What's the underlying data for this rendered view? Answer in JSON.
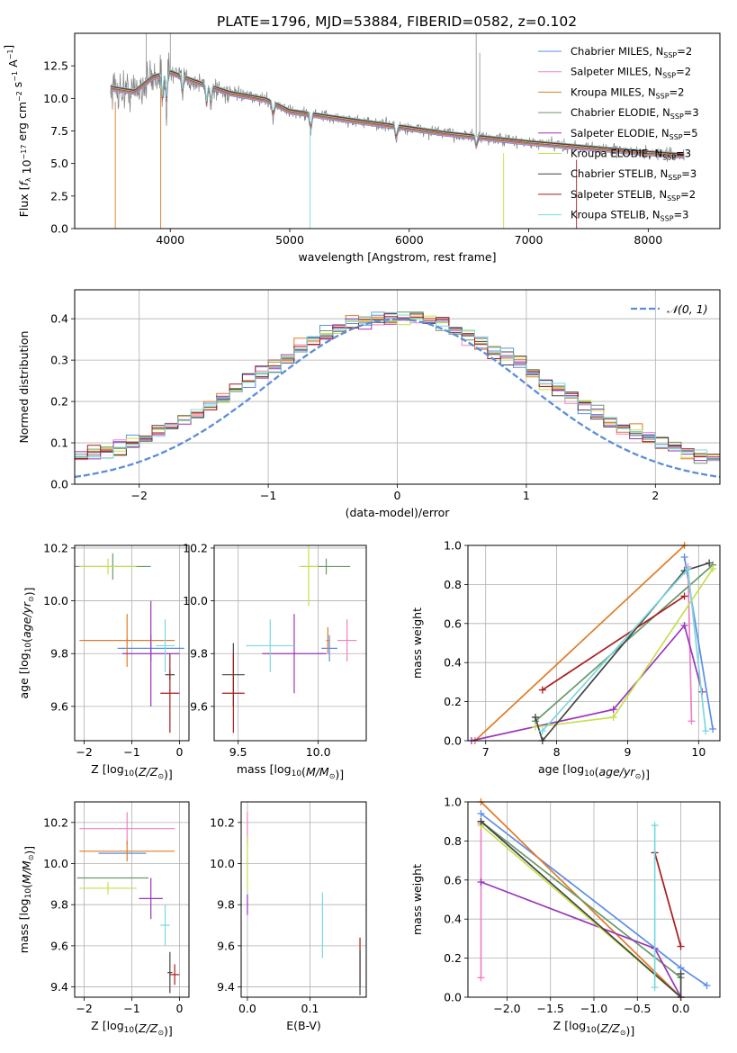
{
  "figure": {
    "title": "PLATE=1796, MJD=53884, FIBERID=0582, z=0.102"
  },
  "colors": {
    "c1": "#5b8ee6",
    "c2": "#ee82c4",
    "c3": "#e07b25",
    "c4": "#69996b",
    "c5": "#9a36b8",
    "c6": "#c4e04a",
    "c7": "#444444",
    "c8": "#a81c1c",
    "c9": "#7ad9de",
    "gauss": "#5b8ed6",
    "spectrum": "#808080"
  },
  "chart_data": [
    {
      "id": "spectrum",
      "type": "line",
      "xlabel": "wavelength [Angstrom, rest frame]",
      "ylabel": "Flux [f_λ 10^-17 erg cm^-2 s^-1 A^-1]",
      "xlim": [
        3200,
        8600
      ],
      "ylim": [
        0,
        15
      ],
      "xticks": [
        4000,
        5000,
        6000,
        7000,
        8000
      ],
      "yticks": [
        0.0,
        2.5,
        5.0,
        7.5,
        10.0,
        12.5
      ],
      "legend_position": "top-right",
      "legend": [
        {
          "label": "Chabrier MILES, N_SSP=2",
          "color": "c1"
        },
        {
          "label": "Salpeter MILES, N_SSP=2",
          "color": "c2"
        },
        {
          "label": "Kroupa MILES, N_SSP=2",
          "color": "c3"
        },
        {
          "label": "Chabrier ELODIE, N_SSP=3",
          "color": "c4"
        },
        {
          "label": "Salpeter ELODIE, N_SSP=5",
          "color": "c5"
        },
        {
          "label": "Kroupa ELODIE, N_SSP=3",
          "color": "c6"
        },
        {
          "label": "Chabrier STELIB, N_SSP=3",
          "color": "c7"
        },
        {
          "label": "Salpeter STELIB, N_SSP=2",
          "color": "c8"
        },
        {
          "label": "Kroupa STELIB, N_SSP=3",
          "color": "c9"
        }
      ],
      "continuum": [
        [
          3500,
          10.8
        ],
        [
          3700,
          10.5
        ],
        [
          3850,
          11.6
        ],
        [
          4000,
          12.0
        ],
        [
          4200,
          11.3
        ],
        [
          4500,
          10.4
        ],
        [
          4800,
          9.9
        ],
        [
          5000,
          9.0
        ],
        [
          5300,
          8.6
        ],
        [
          5600,
          8.2
        ],
        [
          6000,
          7.7
        ],
        [
          6300,
          7.3
        ],
        [
          6600,
          7.0
        ],
        [
          7000,
          6.6
        ],
        [
          7500,
          6.2
        ],
        [
          8000,
          5.8
        ],
        [
          8300,
          5.6
        ]
      ]
    },
    {
      "id": "residual-hist",
      "type": "histogram",
      "xlabel": "(data-model)/error",
      "ylabel": "Normed distribution",
      "xlim": [
        -2.5,
        2.5
      ],
      "ylim": [
        0,
        0.47
      ],
      "xticks": [
        -2,
        -1,
        0,
        1,
        2
      ],
      "yticks": [
        0.0,
        0.1,
        0.2,
        0.3,
        0.4
      ],
      "grid": true,
      "legend_position": "top-right",
      "reference": {
        "label": "𝒩(0, 1)",
        "mean": 0,
        "sigma": 1
      },
      "bin_width": 0.1
    },
    {
      "id": "age-vs-Z",
      "type": "errorbar",
      "xlabel": "Z [log10(Z/Z☉)]",
      "ylabel": "age  [log10(age/yr)]",
      "xlim": [
        -2.2,
        0.2
      ],
      "ylim": [
        9.47,
        10.21
      ],
      "xticks": [
        -2,
        -1,
        0
      ],
      "yticks": [
        9.6,
        9.8,
        10.0,
        10.2
      ],
      "grid": true,
      "points": [
        {
          "c": "c1",
          "x": -0.6,
          "y": 9.82,
          "xerr": 0.7,
          "yerr": 0.05
        },
        {
          "c": "c2",
          "x": -1.1,
          "y": 9.85,
          "xerr": 0.9,
          "yerr": 0.01
        },
        {
          "c": "c3",
          "x": -1.1,
          "y": 9.85,
          "xerr": 1.0,
          "yerr": 0.1
        },
        {
          "c": "c4",
          "x": -1.4,
          "y": 10.13,
          "xerr": 0.8,
          "yerr": 0.05
        },
        {
          "c": "c5",
          "x": -0.6,
          "y": 9.8,
          "xerr": 0.6,
          "yerr": 0.2
        },
        {
          "c": "c6",
          "x": -1.5,
          "y": 10.13,
          "xerr": 0.6,
          "yerr": 0.03
        },
        {
          "c": "c7",
          "x": -0.2,
          "y": 9.72,
          "xerr": 0.1,
          "yerr": 0.02
        },
        {
          "c": "c8",
          "x": -0.2,
          "y": 9.65,
          "xerr": 0.2,
          "yerr": 0.15
        },
        {
          "c": "c9",
          "x": -0.3,
          "y": 9.83,
          "xerr": 0.2,
          "yerr": 0.1
        }
      ]
    },
    {
      "id": "age-vs-mass",
      "type": "errorbar",
      "xlabel": "mass [log10(M/M☉)]",
      "ylabel": "",
      "xlim": [
        9.35,
        10.3
      ],
      "ylim": [
        9.47,
        10.21
      ],
      "xticks": [
        9.5,
        10.0
      ],
      "yticks": [
        9.6,
        9.8,
        10.0,
        10.2
      ],
      "grid": true,
      "points": [
        {
          "c": "c1",
          "x": 10.07,
          "y": 9.82,
          "xerr": 0.05,
          "yerr": 0.05
        },
        {
          "c": "c2",
          "x": 10.18,
          "y": 9.85,
          "xerr": 0.06,
          "yerr": 0.08
        },
        {
          "c": "c3",
          "x": 10.06,
          "y": 9.85,
          "xerr": 0.01,
          "yerr": 0.05
        },
        {
          "c": "c4",
          "x": 10.05,
          "y": 10.13,
          "xerr": 0.15,
          "yerr": 0.03
        },
        {
          "c": "c5",
          "x": 9.85,
          "y": 9.8,
          "xerr": 0.2,
          "yerr": 0.15
        },
        {
          "c": "c6",
          "x": 9.94,
          "y": 10.13,
          "xerr": 0.06,
          "yerr": 0.15
        },
        {
          "c": "c7",
          "x": 9.47,
          "y": 9.72,
          "xerr": 0.07,
          "yerr": 0.12
        },
        {
          "c": "c8",
          "x": 9.47,
          "y": 9.65,
          "xerr": 0.07,
          "yerr": 0.15
        },
        {
          "c": "c9",
          "x": 9.7,
          "y": 9.83,
          "xerr": 0.15,
          "yerr": 0.1
        }
      ]
    },
    {
      "id": "weight-vs-age",
      "type": "line",
      "xlabel": "age  [log10(age/yr)]",
      "ylabel": "mass weight",
      "xlim": [
        6.75,
        10.3
      ],
      "ylim": [
        0,
        1.0
      ],
      "xticks": [
        7,
        8,
        9,
        10
      ],
      "yticks": [
        0.0,
        0.2,
        0.4,
        0.6,
        0.8,
        1.0
      ],
      "grid": true,
      "series": [
        {
          "c": "c1",
          "points": [
            [
              10.2,
              0.06
            ],
            [
              9.8,
              0.94
            ]
          ]
        },
        {
          "c": "c2",
          "points": [
            [
              9.9,
              0.1
            ],
            [
              9.85,
              0.89
            ]
          ]
        },
        {
          "c": "c3",
          "points": [
            [
              6.85,
              0.0
            ],
            [
              9.8,
              1.0
            ]
          ]
        },
        {
          "c": "c4",
          "points": [
            [
              7.7,
              0.1
            ],
            [
              10.2,
              0.9
            ]
          ]
        },
        {
          "c": "c5",
          "points": [
            [
              6.8,
              0.0
            ],
            [
              8.8,
              0.16
            ],
            [
              9.8,
              0.59
            ],
            [
              10.05,
              0.25
            ]
          ]
        },
        {
          "c": "c6",
          "points": [
            [
              7.7,
              0.07
            ],
            [
              8.8,
              0.12
            ],
            [
              10.2,
              0.88
            ]
          ]
        },
        {
          "c": "c7",
          "points": [
            [
              7.7,
              0.12
            ],
            [
              7.8,
              0.0
            ],
            [
              9.8,
              0.87
            ],
            [
              10.15,
              0.91
            ]
          ]
        },
        {
          "c": "c8",
          "points": [
            [
              7.8,
              0.26
            ],
            [
              9.8,
              0.74
            ]
          ]
        },
        {
          "c": "c9",
          "points": [
            [
              7.8,
              0.05
            ],
            [
              9.85,
              0.88
            ],
            [
              10.1,
              0.05
            ]
          ]
        }
      ]
    },
    {
      "id": "mass-vs-Z",
      "type": "errorbar",
      "xlabel": "Z [log10(Z/Z☉)]",
      "ylabel": "mass [log10(M/M☉)]",
      "xlim": [
        -2.2,
        0.2
      ],
      "ylim": [
        9.35,
        10.3
      ],
      "xticks": [
        -2,
        -1,
        0
      ],
      "yticks": [
        9.4,
        9.6,
        9.8,
        10.0,
        10.2
      ],
      "grid": true,
      "points": [
        {
          "c": "c1",
          "x": -1.2,
          "y": 10.05,
          "xerr": 0.5,
          "yerr": 0.0
        },
        {
          "c": "c2",
          "x": -1.1,
          "y": 10.17,
          "xerr": 1.0,
          "yerr": 0.08
        },
        {
          "c": "c3",
          "x": -1.1,
          "y": 10.06,
          "xerr": 1.0,
          "yerr": 0.05
        },
        {
          "c": "c4",
          "x": -1.4,
          "y": 9.93,
          "xerr": 0.75,
          "yerr": 0.0
        },
        {
          "c": "c5",
          "x": -0.6,
          "y": 9.83,
          "xerr": 0.25,
          "yerr": 0.1
        },
        {
          "c": "c6",
          "x": -1.5,
          "y": 9.88,
          "xerr": 0.6,
          "yerr": 0.03
        },
        {
          "c": "c7",
          "x": -0.2,
          "y": 9.47,
          "xerr": 0.05,
          "yerr": 0.1
        },
        {
          "c": "c8",
          "x": -0.1,
          "y": 9.46,
          "xerr": 0.1,
          "yerr": 0.05
        },
        {
          "c": "c9",
          "x": -0.3,
          "y": 9.7,
          "xerr": 0.1,
          "yerr": 0.1
        }
      ]
    },
    {
      "id": "mass-vs-EBV",
      "type": "errorbar",
      "xlabel": "E(B-V)",
      "ylabel": "",
      "xlim": [
        -0.01,
        0.19
      ],
      "ylim": [
        9.35,
        10.3
      ],
      "xticks": [
        0.0,
        0.1
      ],
      "yticks": [
        9.4,
        9.6,
        9.8,
        10.0,
        10.2
      ],
      "grid": true,
      "points": [
        {
          "c": "c2",
          "x": 0.0,
          "y": 10.17,
          "xerr": 0,
          "yerr": 0.08
        },
        {
          "c": "c6",
          "x": 0.0,
          "y": 10.0,
          "xerr": 0,
          "yerr": 0.13
        },
        {
          "c": "c5",
          "x": 0.0,
          "y": 9.8,
          "xerr": 0,
          "yerr": 0.05
        },
        {
          "c": "c9",
          "x": 0.12,
          "y": 9.7,
          "xerr": 0,
          "yerr": 0.16
        },
        {
          "c": "c8",
          "x": 0.18,
          "y": 9.52,
          "xerr": 0,
          "yerr": 0.12
        },
        {
          "c": "c7",
          "x": 0.18,
          "y": 9.47,
          "xerr": 0,
          "yerr": 0.11
        }
      ]
    },
    {
      "id": "weight-vs-Z",
      "type": "line",
      "xlabel": "Z [log10(Z/Z☉)]",
      "ylabel": "mass weight",
      "xlim": [
        -2.45,
        0.45
      ],
      "ylim": [
        0,
        1.0
      ],
      "xticks": [
        -2.0,
        -1.5,
        -1.0,
        -0.5,
        0.0
      ],
      "yticks": [
        0.0,
        0.2,
        0.4,
        0.6,
        0.8,
        1.0
      ],
      "grid": true,
      "series": [
        {
          "c": "c1",
          "points": [
            [
              -2.3,
              0.94
            ],
            [
              0.0,
              0.15
            ],
            [
              0.3,
              0.06
            ]
          ]
        },
        {
          "c": "c2",
          "points": [
            [
              -2.3,
              0.1
            ],
            [
              -2.3,
              0.89
            ]
          ]
        },
        {
          "c": "c3",
          "points": [
            [
              -2.3,
              1.0
            ],
            [
              0.0,
              0.0
            ]
          ]
        },
        {
          "c": "c4",
          "points": [
            [
              -2.3,
              0.9
            ],
            [
              0.0,
              0.1
            ]
          ]
        },
        {
          "c": "c5",
          "points": [
            [
              -2.3,
              0.59
            ],
            [
              -0.3,
              0.25
            ],
            [
              0.0,
              0.0
            ]
          ]
        },
        {
          "c": "c6",
          "points": [
            [
              -2.3,
              0.88
            ],
            [
              0.0,
              0.0
            ]
          ]
        },
        {
          "c": "c7",
          "points": [
            [
              -2.3,
              0.9
            ],
            [
              0.0,
              0.0
            ],
            [
              0.0,
              0.12
            ]
          ]
        },
        {
          "c": "c8",
          "points": [
            [
              -0.3,
              0.74
            ],
            [
              0.0,
              0.26
            ]
          ]
        },
        {
          "c": "c9",
          "points": [
            [
              -0.3,
              0.88
            ],
            [
              -0.3,
              0.05
            ]
          ]
        }
      ]
    }
  ]
}
